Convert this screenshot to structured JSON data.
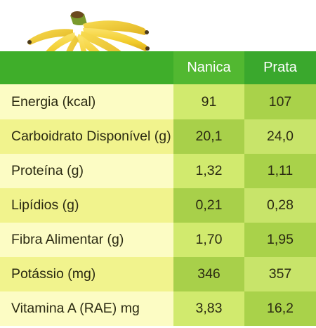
{
  "header": {
    "col_nanica": "Nanica",
    "col_prata": "Prata"
  },
  "rows": [
    {
      "label": "Energia (kcal)",
      "nanica": "91",
      "prata": "107"
    },
    {
      "label": "Carboidrato Disponível (g)",
      "nanica": "20,1",
      "prata": "24,0"
    },
    {
      "label": "Proteína (g)",
      "nanica": "1,32",
      "prata": "1,11"
    },
    {
      "label": "Lipídios (g)",
      "nanica": "0,21",
      "prata": "0,28"
    },
    {
      "label": "Fibra Alimentar (g)",
      "nanica": "1,70",
      "prata": "1,95"
    },
    {
      "label": "Potássio (mg)",
      "nanica": "346",
      "prata": "357"
    },
    {
      "label": "Vitamina A (RAE) mg",
      "nanica": "3,83",
      "prata": "16,2"
    }
  ],
  "colors": {
    "header_green": "#3fae2a",
    "row_light": "#fcfcc4",
    "row_yellow": "#f1f38d",
    "cell_lime": "#d1ea6e",
    "cell_green": "#a8d04a"
  }
}
